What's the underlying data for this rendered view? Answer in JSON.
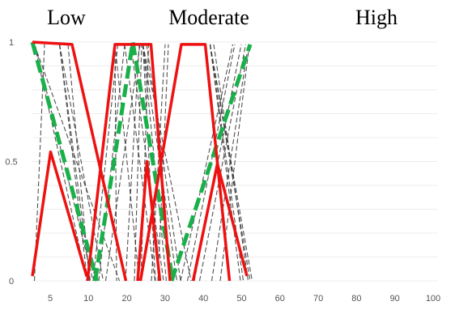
{
  "chart_data": {
    "type": "line",
    "category_titles": [
      "Low",
      "Moderate",
      "High"
    ],
    "x_tick_labels": [
      "5",
      "10",
      "20",
      "30",
      "40",
      "50",
      "60",
      "70",
      "80",
      "90",
      "100"
    ],
    "y_tick_labels": [
      "0",
      "0.5",
      "1"
    ],
    "ylim": [
      0,
      1
    ],
    "grid": true,
    "colors": {
      "red": "#ee1111",
      "green": "#19b04a",
      "dashed": "#333333"
    },
    "red_series": [
      {
        "values": [
          [
            0,
            0.02
          ],
          [
            4.5,
            0.54
          ],
          [
            13.4,
            0.02
          ]
        ]
      },
      {
        "values": [
          [
            0,
            1
          ],
          [
            9.8,
            0.99
          ],
          [
            23.1,
            0.0
          ]
        ]
      },
      {
        "values": [
          [
            13.6,
            0.0
          ],
          [
            20.4,
            0.99
          ],
          [
            29.3,
            0.99
          ],
          [
            34.0,
            0.0
          ]
        ]
      },
      {
        "values": [
          [
            26.0,
            0.0
          ],
          [
            28.3,
            0.5
          ],
          [
            31.5,
            0.0
          ]
        ]
      },
      {
        "values": [
          [
            26.7,
            0.0
          ],
          [
            36.8,
            0.99
          ],
          [
            42.7,
            0.99
          ],
          [
            48.7,
            0.0
          ]
        ]
      },
      {
        "values": [
          [
            39.7,
            0.0
          ],
          [
            45.7,
            0.49
          ],
          [
            53.0,
            0.02
          ]
        ]
      }
    ],
    "green_series": [
      {
        "values": [
          [
            0,
            1
          ],
          [
            15.9,
            0.0
          ]
        ]
      },
      {
        "values": [
          [
            15.5,
            0.0
          ],
          [
            24.8,
            1.0
          ],
          [
            34.7,
            0.0
          ]
        ]
      },
      {
        "values": [
          [
            34.4,
            0.0
          ],
          [
            53.8,
            0.99
          ]
        ]
      }
    ],
    "dashed_series": [
      {
        "values": [
          [
            0.5,
            0.0
          ],
          [
            3.0,
            0.99
          ]
        ]
      },
      {
        "values": [
          [
            0.5,
            0.99
          ],
          [
            13.5,
            0.0
          ]
        ]
      },
      {
        "values": [
          [
            0.5,
            0.99
          ],
          [
            21.5,
            0.0
          ]
        ]
      },
      {
        "values": [
          [
            0.8,
            0.98
          ],
          [
            15.0,
            0.0
          ]
        ]
      },
      {
        "values": [
          [
            6.7,
            0.99
          ],
          [
            14.3,
            0.0
          ]
        ]
      },
      {
        "values": [
          [
            6.7,
            0.99
          ],
          [
            17.5,
            0.0
          ]
        ]
      },
      {
        "values": [
          [
            6.7,
            0.99
          ],
          [
            13.6,
            0.0
          ]
        ]
      },
      {
        "values": [
          [
            8.8,
            0.99
          ],
          [
            14.1,
            0.0
          ]
        ]
      },
      {
        "values": [
          [
            15.0,
            0.0
          ],
          [
            21.1,
            0.99
          ]
        ]
      },
      {
        "values": [
          [
            16.4,
            0.0
          ],
          [
            22.8,
            0.99
          ]
        ]
      },
      {
        "values": [
          [
            20.4,
            0.99
          ],
          [
            26.4,
            0.0
          ]
        ]
      },
      {
        "values": [
          [
            20.4,
            0.99
          ],
          [
            20.8,
            0.0
          ]
        ]
      },
      {
        "values": [
          [
            18.1,
            0.0
          ],
          [
            26.6,
            0.99
          ]
        ]
      },
      {
        "values": [
          [
            22.8,
            0.99
          ],
          [
            30.3,
            0.0
          ]
        ]
      },
      {
        "values": [
          [
            24.3,
            0.99
          ],
          [
            32.4,
            0.0
          ]
        ]
      },
      {
        "values": [
          [
            23.0,
            0.0
          ],
          [
            26.4,
            0.99
          ]
        ]
      },
      {
        "values": [
          [
            25.2,
            0.0
          ],
          [
            27.0,
            0.99
          ]
        ]
      },
      {
        "values": [
          [
            26.8,
            0.0
          ],
          [
            28.7,
            0.99
          ]
        ]
      },
      {
        "values": [
          [
            27.3,
            0.99
          ],
          [
            30.4,
            0.0
          ]
        ]
      },
      {
        "values": [
          [
            27.3,
            0.99
          ],
          [
            35.7,
            0.0
          ]
        ]
      },
      {
        "values": [
          [
            27.3,
            0.99
          ],
          [
            33.1,
            0.0
          ]
        ]
      },
      {
        "values": [
          [
            27.3,
            0.99
          ],
          [
            39.2,
            0.0
          ]
        ]
      },
      {
        "values": [
          [
            28.2,
            0.99
          ],
          [
            36.6,
            0.0
          ]
        ]
      },
      {
        "values": [
          [
            29.4,
            0.0
          ],
          [
            32.8,
            0.99
          ]
        ]
      },
      {
        "values": [
          [
            29.4,
            0.99
          ],
          [
            34.0,
            0.0
          ]
        ]
      },
      {
        "values": [
          [
            31.0,
            0.0
          ],
          [
            33.6,
            0.99
          ]
        ]
      },
      {
        "values": [
          [
            36.6,
            0.0
          ],
          [
            49.5,
            0.99
          ]
        ]
      },
      {
        "values": [
          [
            38.3,
            0.0
          ],
          [
            50.0,
            0.99
          ]
        ]
      },
      {
        "values": [
          [
            40.0,
            0.0
          ],
          [
            51.6,
            0.99
          ]
        ]
      },
      {
        "values": [
          [
            41.3,
            0.0
          ],
          [
            52.7,
            0.99
          ]
        ]
      },
      {
        "values": [
          [
            44.3,
            0.0
          ],
          [
            53.0,
            0.95
          ]
        ]
      },
      {
        "values": [
          [
            46.4,
            0.0
          ],
          [
            53.6,
            0.99
          ]
        ]
      },
      {
        "values": [
          [
            43.9,
            0.99
          ],
          [
            51.4,
            0.0
          ]
        ]
      },
      {
        "values": [
          [
            43.9,
            0.99
          ],
          [
            52.1,
            0.0
          ]
        ]
      },
      {
        "values": [
          [
            43.9,
            0.99
          ],
          [
            53.8,
            0.0
          ]
        ]
      },
      {
        "values": [
          [
            43.9,
            0.99
          ],
          [
            54.3,
            0.0
          ]
        ]
      },
      {
        "values": [
          [
            44.8,
            0.99
          ],
          [
            53.3,
            0.0
          ]
        ]
      }
    ]
  }
}
